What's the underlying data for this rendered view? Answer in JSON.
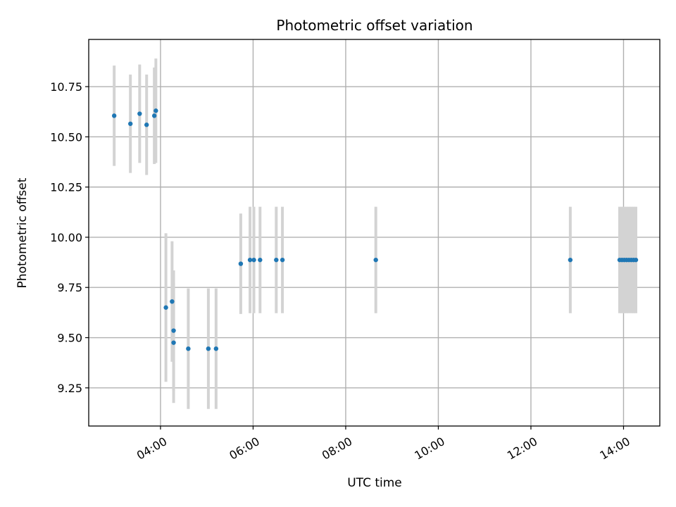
{
  "chart_data": {
    "type": "scatter",
    "title": "Photometric offset variation",
    "xlabel": "UTC time",
    "ylabel": "Photometric offset",
    "x_type": "time",
    "xlim": [
      "02:27",
      "14:47"
    ],
    "ylim": [
      9.06,
      10.985
    ],
    "x_ticks": [
      "04:00",
      "06:00",
      "08:00",
      "10:00",
      "12:00",
      "14:00"
    ],
    "y_ticks": [
      9.25,
      9.5,
      9.75,
      10.0,
      10.25,
      10.5,
      10.75
    ],
    "y_tick_labels": [
      "9.25",
      "9.50",
      "9.75",
      "10.00",
      "10.25",
      "10.50",
      "10.75"
    ],
    "grid": true,
    "colors": {
      "points": "#1f77b4",
      "error_bars": "#d3d3d3",
      "grid": "#b0b0b0"
    },
    "series": [
      {
        "points": [
          {
            "x": "03:00",
            "y": 10.605,
            "err": 0.25
          },
          {
            "x": "03:21",
            "y": 10.565,
            "err": 0.245
          },
          {
            "x": "03:33",
            "y": 10.615,
            "err": 0.245
          },
          {
            "x": "03:42",
            "y": 10.56,
            "err": 0.25
          },
          {
            "x": "03:52",
            "y": 10.605,
            "err": 0.24
          },
          {
            "x": "03:54",
            "y": 10.63,
            "err": 0.26
          },
          {
            "x": "04:07",
            "y": 9.65,
            "err": 0.37
          },
          {
            "x": "04:15",
            "y": 9.68,
            "err": 0.3
          },
          {
            "x": "04:17",
            "y": 9.535,
            "err": 0.3
          },
          {
            "x": "04:17",
            "y": 9.475,
            "err": 0.3
          },
          {
            "x": "04:36",
            "y": 9.445,
            "err": 0.3
          },
          {
            "x": "05:02",
            "y": 9.445,
            "err": 0.3
          },
          {
            "x": "05:12",
            "y": 9.445,
            "err": 0.3
          },
          {
            "x": "05:44",
            "y": 9.868,
            "err": 0.25
          },
          {
            "x": "05:56",
            "y": 9.887,
            "err": 0.265
          },
          {
            "x": "06:01",
            "y": 9.887,
            "err": 0.265
          },
          {
            "x": "06:09",
            "y": 9.887,
            "err": 0.265
          },
          {
            "x": "06:30",
            "y": 9.887,
            "err": 0.265
          },
          {
            "x": "06:38",
            "y": 9.887,
            "err": 0.265
          },
          {
            "x": "08:39",
            "y": 9.887,
            "err": 0.265
          },
          {
            "x": "12:51",
            "y": 9.887,
            "err": 0.265
          },
          {
            "x": "13:55",
            "y": 9.887,
            "err": 0.265
          },
          {
            "x": "13:58",
            "y": 9.887,
            "err": 0.265
          },
          {
            "x": "14:01",
            "y": 9.887,
            "err": 0.265
          },
          {
            "x": "14:04",
            "y": 9.887,
            "err": 0.265
          },
          {
            "x": "14:07",
            "y": 9.887,
            "err": 0.265
          },
          {
            "x": "14:10",
            "y": 9.887,
            "err": 0.265
          },
          {
            "x": "14:13",
            "y": 9.887,
            "err": 0.265
          },
          {
            "x": "14:16",
            "y": 9.887,
            "err": 0.265
          }
        ]
      }
    ]
  }
}
